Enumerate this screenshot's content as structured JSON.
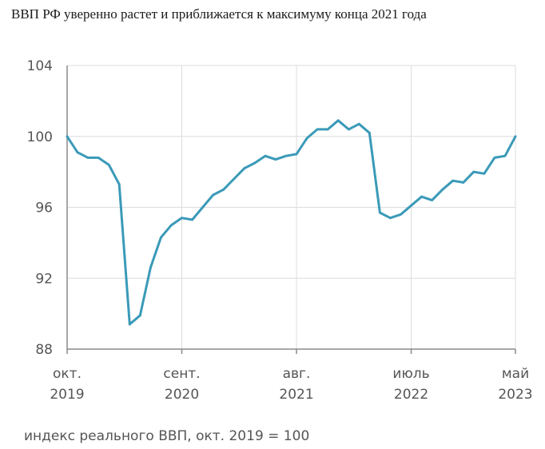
{
  "title": "ВВП РФ уверенно растет и приближается к максимуму конца 2021 года",
  "footnote": "индекс реального ВВП, окт. 2019 = 100",
  "colors": {
    "line": "#3a9ab8",
    "grid": "#dcdcdc",
    "axis": "#8a8a8a"
  },
  "chart_data": {
    "type": "line",
    "title": "ВВП РФ уверенно растет и приближается к максимуму конца 2021 года",
    "xlabel": "",
    "ylabel": "индекс реального ВВП, окт. 2019 = 100",
    "ylim": [
      88,
      104
    ],
    "xlim": [
      "2019-10",
      "2023-05"
    ],
    "grid": true,
    "y_ticks": [
      88,
      92,
      96,
      100,
      104
    ],
    "x_ticks": [
      {
        "x": "2019-10",
        "line1": "окт.",
        "line2": "2019"
      },
      {
        "x": "2020-09",
        "line1": "сент.",
        "line2": "2020"
      },
      {
        "x": "2021-08",
        "line1": "авг.",
        "line2": "2021"
      },
      {
        "x": "2022-07",
        "line1": "июль",
        "line2": "2022"
      },
      {
        "x": "2023-05",
        "line1": "май",
        "line2": "2023"
      }
    ],
    "series": [
      {
        "x": [
          "2019-10",
          "2019-11",
          "2019-12",
          "2020-01",
          "2020-02",
          "2020-03",
          "2020-04",
          "2020-05",
          "2020-06",
          "2020-07",
          "2020-08",
          "2020-09",
          "2020-10",
          "2020-11",
          "2020-12",
          "2021-01",
          "2021-02",
          "2021-03",
          "2021-04",
          "2021-05",
          "2021-06",
          "2021-07",
          "2021-08",
          "2021-09",
          "2021-10",
          "2021-11",
          "2021-12",
          "2022-01",
          "2022-02",
          "2022-03",
          "2022-04",
          "2022-05",
          "2022-06",
          "2022-07",
          "2022-08",
          "2022-09",
          "2022-10",
          "2022-11",
          "2022-12",
          "2023-01",
          "2023-02",
          "2023-03",
          "2023-04",
          "2023-05"
        ],
        "values": [
          100.0,
          99.1,
          98.8,
          98.8,
          98.4,
          97.3,
          89.4,
          89.9,
          92.6,
          94.3,
          95.0,
          95.4,
          95.3,
          96.0,
          96.7,
          97.0,
          97.6,
          98.2,
          98.5,
          98.9,
          98.7,
          98.9,
          99.0,
          99.9,
          100.4,
          100.4,
          100.9,
          100.4,
          100.7,
          100.2,
          95.7,
          95.4,
          95.6,
          96.1,
          96.6,
          96.4,
          97.0,
          97.5,
          97.4,
          98.0,
          97.9,
          98.8,
          98.9,
          100.0
        ]
      }
    ]
  }
}
